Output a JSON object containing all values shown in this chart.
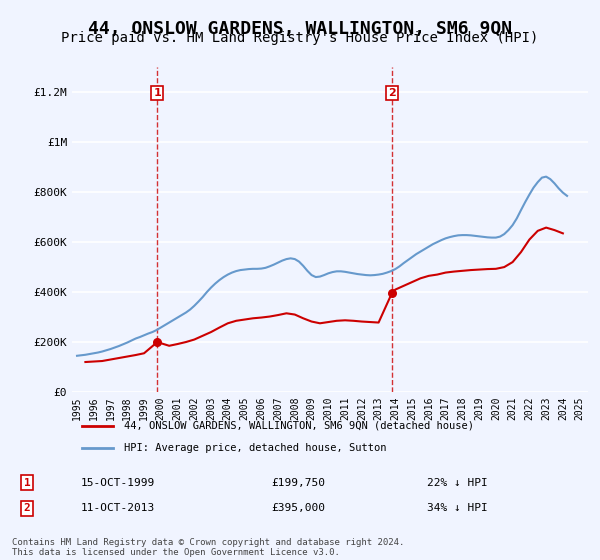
{
  "title": "44, ONSLOW GARDENS, WALLINGTON, SM6 9QN",
  "subtitle": "Price paid vs. HM Land Registry's House Price Index (HPI)",
  "title_fontsize": 13,
  "subtitle_fontsize": 10,
  "red_label": "44, ONSLOW GARDENS, WALLINGTON, SM6 9QN (detached house)",
  "blue_label": "HPI: Average price, detached house, Sutton",
  "annotation1_label": "1",
  "annotation1_date": "15-OCT-1999",
  "annotation1_price": "£199,750",
  "annotation1_hpi": "22% ↓ HPI",
  "annotation1_year": 1999.79,
  "annotation1_value": 199750,
  "annotation2_label": "2",
  "annotation2_date": "11-OCT-2013",
  "annotation2_price": "£395,000",
  "annotation2_hpi": "34% ↓ HPI",
  "annotation2_year": 2013.79,
  "annotation2_value": 395000,
  "ylabel_ticks": [
    "£0",
    "£200K",
    "£400K",
    "£600K",
    "£800K",
    "£1M",
    "£1.2M"
  ],
  "ytick_vals": [
    0,
    200000,
    400000,
    600000,
    800000,
    1000000,
    1200000
  ],
  "ylim": [
    0,
    1300000
  ],
  "xlim_start": 1995,
  "xlim_end": 2025.5,
  "background_color": "#f0f4ff",
  "plot_bg_color": "#f0f4ff",
  "grid_color": "#ffffff",
  "red_color": "#cc0000",
  "blue_color": "#6699cc",
  "vline_color": "#cc0000",
  "footnote": "Contains HM Land Registry data © Crown copyright and database right 2024.\nThis data is licensed under the Open Government Licence v3.0.",
  "hpi_years": [
    1995,
    1995.25,
    1995.5,
    1995.75,
    1996,
    1996.25,
    1996.5,
    1996.75,
    1997,
    1997.25,
    1997.5,
    1997.75,
    1998,
    1998.25,
    1998.5,
    1998.75,
    1999,
    1999.25,
    1999.5,
    1999.75,
    2000,
    2000.25,
    2000.5,
    2000.75,
    2001,
    2001.25,
    2001.5,
    2001.75,
    2002,
    2002.25,
    2002.5,
    2002.75,
    2003,
    2003.25,
    2003.5,
    2003.75,
    2004,
    2004.25,
    2004.5,
    2004.75,
    2005,
    2005.25,
    2005.5,
    2005.75,
    2006,
    2006.25,
    2006.5,
    2006.75,
    2007,
    2007.25,
    2007.5,
    2007.75,
    2008,
    2008.25,
    2008.5,
    2008.75,
    2009,
    2009.25,
    2009.5,
    2009.75,
    2010,
    2010.25,
    2010.5,
    2010.75,
    2011,
    2011.25,
    2011.5,
    2011.75,
    2012,
    2012.25,
    2012.5,
    2012.75,
    2013,
    2013.25,
    2013.5,
    2013.75,
    2014,
    2014.25,
    2014.5,
    2014.75,
    2015,
    2015.25,
    2015.5,
    2015.75,
    2016,
    2016.25,
    2016.5,
    2016.75,
    2017,
    2017.25,
    2017.5,
    2017.75,
    2018,
    2018.25,
    2018.5,
    2018.75,
    2019,
    2019.25,
    2019.5,
    2019.75,
    2020,
    2020.25,
    2020.5,
    2020.75,
    2021,
    2021.25,
    2021.5,
    2021.75,
    2022,
    2022.25,
    2022.5,
    2022.75,
    2023,
    2023.25,
    2023.5,
    2023.75,
    2024,
    2024.25
  ],
  "hpi_values": [
    145000,
    147000,
    149000,
    152000,
    155000,
    158000,
    162000,
    167000,
    172000,
    178000,
    184000,
    191000,
    198000,
    206000,
    214000,
    220000,
    227000,
    234000,
    240000,
    248000,
    258000,
    268000,
    278000,
    288000,
    298000,
    308000,
    318000,
    330000,
    345000,
    362000,
    380000,
    400000,
    418000,
    434000,
    448000,
    460000,
    470000,
    478000,
    484000,
    488000,
    490000,
    492000,
    493000,
    493000,
    494000,
    497000,
    503000,
    510000,
    518000,
    526000,
    532000,
    535000,
    532000,
    522000,
    505000,
    485000,
    468000,
    460000,
    462000,
    468000,
    475000,
    480000,
    483000,
    483000,
    481000,
    478000,
    475000,
    472000,
    470000,
    468000,
    467000,
    468000,
    470000,
    473000,
    478000,
    484000,
    492000,
    503000,
    516000,
    528000,
    540000,
    552000,
    562000,
    572000,
    582000,
    592000,
    600000,
    608000,
    615000,
    620000,
    624000,
    627000,
    628000,
    628000,
    627000,
    625000,
    623000,
    621000,
    619000,
    618000,
    618000,
    622000,
    632000,
    648000,
    668000,
    695000,
    728000,
    760000,
    790000,
    818000,
    840000,
    858000,
    862000,
    852000,
    835000,
    815000,
    798000,
    785000
  ],
  "red_years": [
    1995.5,
    1996,
    1996.5,
    1997,
    1997.5,
    1998,
    1998.5,
    1999,
    1999.79,
    2000.5,
    2001,
    2001.5,
    2002,
    2002.5,
    2003,
    2003.5,
    2004,
    2004.5,
    2005,
    2005.5,
    2006,
    2006.5,
    2007,
    2007.5,
    2008,
    2008.5,
    2009,
    2009.5,
    2010,
    2010.5,
    2011,
    2011.5,
    2012,
    2012.5,
    2013,
    2013.79,
    2014,
    2014.5,
    2015,
    2015.5,
    2016,
    2016.5,
    2017,
    2017.5,
    2018,
    2018.5,
    2019,
    2019.5,
    2020,
    2020.5,
    2021,
    2021.5,
    2022,
    2022.5,
    2023,
    2023.5,
    2024
  ],
  "red_values": [
    120000,
    122000,
    124000,
    130000,
    136000,
    142000,
    148000,
    155000,
    199750,
    185000,
    192000,
    200000,
    210000,
    225000,
    240000,
    258000,
    275000,
    285000,
    290000,
    295000,
    298000,
    302000,
    308000,
    315000,
    310000,
    295000,
    282000,
    275000,
    280000,
    285000,
    287000,
    285000,
    282000,
    280000,
    278000,
    395000,
    410000,
    425000,
    440000,
    455000,
    465000,
    470000,
    478000,
    482000,
    485000,
    488000,
    490000,
    492000,
    493000,
    500000,
    520000,
    560000,
    610000,
    645000,
    658000,
    648000,
    635000
  ]
}
